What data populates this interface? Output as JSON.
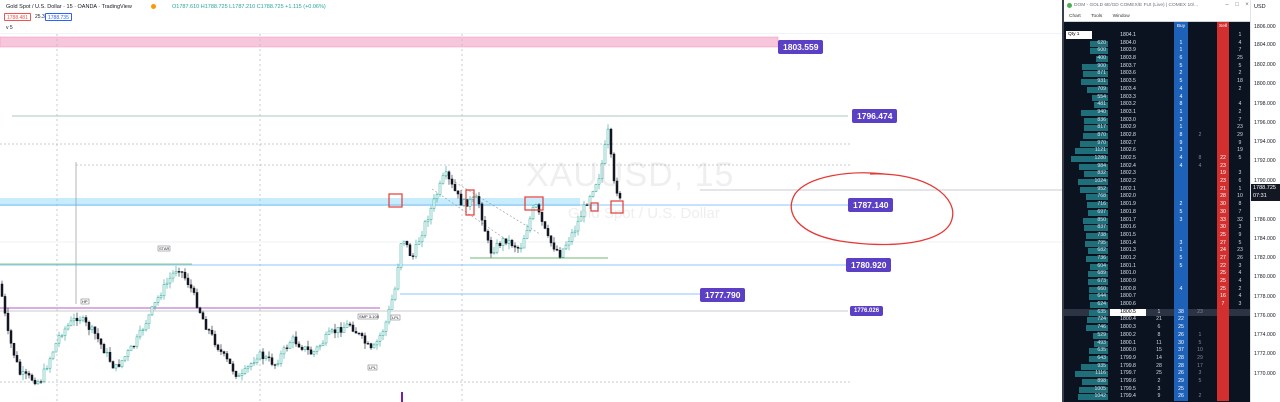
{
  "header": {
    "title": "Gold Spot / U.S. Dollar · 15 · OANDA · TradingView",
    "ohlc": "O1787.610 H1788.725 L1787.210 C1788.725 +1.115 (+0.06%)",
    "sell_price": "1788.481",
    "spread": "25.3",
    "buy_price": "1788.735",
    "volume_label": "v 5"
  },
  "watermark": {
    "symbol": "XAUUSD, 15",
    "name": "Gold Spot / U.S. Dollar"
  },
  "price_labels": {
    "top": "1803.559",
    "l1796": "1796.474",
    "l1787": "1787.140",
    "l1780": "1780.920",
    "l1777": "1777.790",
    "l1776": "1776.026"
  },
  "chart_labels": {
    "a": "STAR",
    "b": "HP",
    "c": "SMP 3-100",
    "d": "LPL",
    "e": "LPL"
  },
  "colors": {
    "bull": "#26a69a",
    "bear": "#131722",
    "tag": "#5b3fc4",
    "annotation_red": "#e53935",
    "zone_pink": "#f8c6dc",
    "zone_blue": "#c7ecfb"
  },
  "axis": {
    "header": "USD",
    "ticks": [
      {
        "label": "1806.000",
        "y": 24
      },
      {
        "label": "1804.000",
        "y": 42
      },
      {
        "label": "1802.000",
        "y": 62
      },
      {
        "label": "1800.000",
        "y": 81
      },
      {
        "label": "1798.000",
        "y": 101
      },
      {
        "label": "1796.000",
        "y": 120
      },
      {
        "label": "1794.000",
        "y": 139
      },
      {
        "label": "1792.000",
        "y": 158
      },
      {
        "label": "1790.000",
        "y": 178
      },
      {
        "label": "1786.000",
        "y": 217
      },
      {
        "label": "1784.000",
        "y": 236
      },
      {
        "label": "1782.000",
        "y": 255
      },
      {
        "label": "1780.000",
        "y": 274
      },
      {
        "label": "1778.000",
        "y": 294
      },
      {
        "label": "1776.000",
        "y": 313
      },
      {
        "label": "1774.000",
        "y": 332
      },
      {
        "label": "1772.000",
        "y": 351
      },
      {
        "label": "1770.000",
        "y": 371
      }
    ],
    "current_price": "1788.725",
    "countdown": "07:31"
  },
  "dom": {
    "title": "DOM - GOLD 6E/GD COMEX/E FUt (Live) | COMEX 10/...",
    "menu": [
      "Chart",
      "Tools",
      "Window"
    ],
    "qty_label": "Qty 1",
    "buy_header": "Buy",
    "sell_header": "Sell",
    "rows": [
      {
        "vol": "",
        "price": "1804.1",
        "c3": "",
        "buy": "",
        "c5": "",
        "sell": "",
        "c7": "1"
      },
      {
        "vol": "620",
        "price": "1804.0",
        "c3": "",
        "buy": "1",
        "c5": "",
        "sell": "",
        "c7": "4"
      },
      {
        "vol": "600",
        "price": "1803.9",
        "c3": "",
        "buy": "1",
        "c5": "",
        "sell": "",
        "c7": "7"
      },
      {
        "vol": "400",
        "price": "1803.8",
        "c3": "",
        "buy": "6",
        "c5": "",
        "sell": "",
        "c7": "25"
      },
      {
        "vol": "900",
        "price": "1803.7",
        "c3": "",
        "buy": "5",
        "c5": "",
        "sell": "",
        "c7": "5"
      },
      {
        "vol": "871",
        "price": "1803.6",
        "c3": "",
        "buy": "2",
        "c5": "",
        "sell": "",
        "c7": "2"
      },
      {
        "vol": "931",
        "price": "1803.5",
        "c3": "",
        "buy": "5",
        "c5": "",
        "sell": "",
        "c7": "18"
      },
      {
        "vol": "709",
        "price": "1803.4",
        "c3": "",
        "buy": "4",
        "c5": "",
        "sell": "",
        "c7": "2"
      },
      {
        "vol": "554",
        "price": "1803.3",
        "c3": "",
        "buy": "4",
        "c5": "",
        "sell": "",
        "c7": ""
      },
      {
        "vol": "481",
        "price": "1803.2",
        "c3": "",
        "buy": "8",
        "c5": "",
        "sell": "",
        "c7": "4"
      },
      {
        "vol": "940",
        "price": "1803.1",
        "c3": "",
        "buy": "1",
        "c5": "",
        "sell": "",
        "c7": "2"
      },
      {
        "vol": "836",
        "price": "1803.0",
        "c3": "",
        "buy": "3",
        "c5": "",
        "sell": "",
        "c7": "7"
      },
      {
        "vol": "817",
        "price": "1802.9",
        "c3": "",
        "buy": "1",
        "c5": "",
        "sell": "",
        "c7": "23"
      },
      {
        "vol": "870",
        "price": "1802.8",
        "c3": "",
        "buy": "8",
        "c5": "2",
        "sell": "",
        "c7": "29"
      },
      {
        "vol": "970",
        "price": "1802.7",
        "c3": "",
        "buy": "9",
        "c5": "",
        "sell": "",
        "c7": "9"
      },
      {
        "vol": "1121",
        "price": "1802.6",
        "c3": "",
        "buy": "3",
        "c5": "",
        "sell": "",
        "c7": "19"
      },
      {
        "vol": "1280",
        "price": "1802.5",
        "c3": "",
        "buy": "4",
        "c5": "8",
        "sell": "22",
        "c7": "5"
      },
      {
        "vol": "984",
        "price": "1802.4",
        "c3": "",
        "buy": "4",
        "c5": "4",
        "sell": "23",
        "c7": ""
      },
      {
        "vol": "832",
        "price": "1802.3",
        "c3": "",
        "buy": "",
        "c5": "",
        "sell": "19",
        "c7": "3"
      },
      {
        "vol": "1024",
        "price": "1802.2",
        "c3": "",
        "buy": "",
        "c5": "",
        "sell": "23",
        "c7": "6"
      },
      {
        "vol": "952",
        "price": "1802.1",
        "c3": "",
        "buy": "",
        "c5": "",
        "sell": "21",
        "c7": "1"
      },
      {
        "vol": "768",
        "price": "1802.0",
        "c3": "",
        "buy": "",
        "c5": "",
        "sell": "28",
        "c7": "10"
      },
      {
        "vol": "716",
        "price": "1801.9",
        "c3": "",
        "buy": "2",
        "c5": "",
        "sell": "30",
        "c7": "8"
      },
      {
        "vol": "697",
        "price": "1801.8",
        "c3": "",
        "buy": "5",
        "c5": "",
        "sell": "30",
        "c7": "7"
      },
      {
        "vol": "850",
        "price": "1801.7",
        "c3": "",
        "buy": "3",
        "c5": "",
        "sell": "33",
        "c7": "32"
      },
      {
        "vol": "837",
        "price": "1801.6",
        "c3": "",
        "buy": "",
        "c5": "",
        "sell": "30",
        "c7": "3"
      },
      {
        "vol": "738",
        "price": "1801.5",
        "c3": "",
        "buy": "",
        "c5": "",
        "sell": "25",
        "c7": "9"
      },
      {
        "vol": "795",
        "price": "1801.4",
        "c3": "",
        "buy": "3",
        "c5": "",
        "sell": "27",
        "c7": "5"
      },
      {
        "vol": "682",
        "price": "1801.3",
        "c3": "",
        "buy": "1",
        "c5": "",
        "sell": "24",
        "c7": "23"
      },
      {
        "vol": "736",
        "price": "1801.2",
        "c3": "",
        "buy": "5",
        "c5": "",
        "sell": "27",
        "c7": "26"
      },
      {
        "vol": "604",
        "price": "1801.1",
        "c3": "",
        "buy": "5",
        "c5": "",
        "sell": "22",
        "c7": "3"
      },
      {
        "vol": "689",
        "price": "1801.0",
        "c3": "",
        "buy": "",
        "c5": "",
        "sell": "25",
        "c7": "4"
      },
      {
        "vol": "673",
        "price": "1800.9",
        "c3": "",
        "buy": "",
        "c5": "",
        "sell": "25",
        "c7": "4"
      },
      {
        "vol": "660",
        "price": "1800.8",
        "c3": "",
        "buy": "4",
        "c5": "",
        "sell": "25",
        "c7": "2"
      },
      {
        "vol": "644",
        "price": "1800.7",
        "c3": "",
        "buy": "",
        "c5": "",
        "sell": "16",
        "c7": "4"
      },
      {
        "vol": "624",
        "price": "1800.6",
        "c3": "",
        "buy": "",
        "c5": "",
        "sell": "7",
        "c7": "3"
      },
      {
        "vol": "635",
        "price": "1800.5",
        "c3": "1",
        "buy": "38",
        "c5": "23",
        "sell": "",
        "c7": "",
        "cur": true
      },
      {
        "vol": "724",
        "price": "1800.4",
        "c3": "21",
        "buy": "22",
        "c5": "",
        "sell": "",
        "c7": ""
      },
      {
        "vol": "746",
        "price": "1800.3",
        "c3": "6",
        "buy": "25",
        "c5": "",
        "sell": "",
        "c7": ""
      },
      {
        "vol": "529",
        "price": "1800.2",
        "c3": "8",
        "buy": "26",
        "c5": "1",
        "sell": "",
        "c7": ""
      },
      {
        "vol": "493",
        "price": "1800.1",
        "c3": "11",
        "buy": "30",
        "c5": "5",
        "sell": "",
        "c7": ""
      },
      {
        "vol": "635",
        "price": "1800.0",
        "c3": "15",
        "buy": "37",
        "c5": "10",
        "sell": "",
        "c7": ""
      },
      {
        "vol": "643",
        "price": "1799.9",
        "c3": "14",
        "buy": "28",
        "c5": "29",
        "sell": "",
        "c7": ""
      },
      {
        "vol": "935",
        "price": "1799.8",
        "c3": "28",
        "buy": "28",
        "c5": "17",
        "sell": "",
        "c7": ""
      },
      {
        "vol": "1116",
        "price": "1799.7",
        "c3": "25",
        "buy": "26",
        "c5": "3",
        "sell": "",
        "c7": ""
      },
      {
        "vol": "898",
        "price": "1799.6",
        "c3": "2",
        "buy": "29",
        "c5": "5",
        "sell": "",
        "c7": ""
      },
      {
        "vol": "1005",
        "price": "1799.5",
        "c3": "3",
        "buy": "25",
        "c5": "",
        "sell": "",
        "c7": ""
      },
      {
        "vol": "1042",
        "price": "1799.4",
        "c3": "9",
        "buy": "26",
        "c5": "2",
        "sell": "",
        "c7": ""
      }
    ]
  }
}
